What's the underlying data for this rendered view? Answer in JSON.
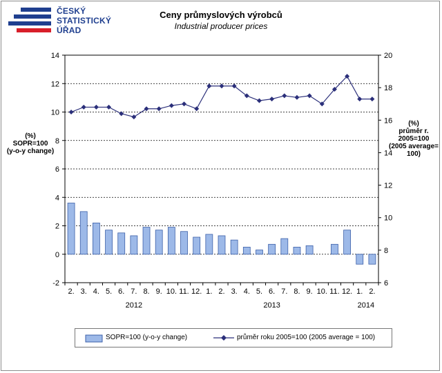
{
  "logo": {
    "lines": [
      "ČESKÝ",
      "STATISTICKÝ",
      "ÚŘAD"
    ]
  },
  "colors": {
    "bar_fill": "#9db9e8",
    "bar_stroke": "#3b5fa8",
    "line_color": "#2b2f7a",
    "logo_blue": "#1f3f8f"
  },
  "chart_data": {
    "type": "bar",
    "title": "Ceny průmyslových výrobců",
    "subtitle": "Industrial producer prices",
    "left_axis_title": [
      "(%)",
      "SOPR=100",
      "(y-o-y change)"
    ],
    "right_axis_title": [
      "(%)",
      "průměr r.",
      "2005=100",
      "(2005 average=",
      "100)"
    ],
    "ylim_left": [
      -2,
      14
    ],
    "yticks_left": [
      -2,
      0,
      2,
      4,
      6,
      8,
      10,
      12,
      14
    ],
    "ylim_right": [
      6,
      20
    ],
    "yticks_right": [
      6,
      8,
      10,
      12,
      14,
      16,
      18,
      20
    ],
    "categories": [
      "2.",
      "3.",
      "4.",
      "5.",
      "6.",
      "7.",
      "8.",
      "9.",
      "10.",
      "11.",
      "12.",
      "1.",
      "2.",
      "3.",
      "4.",
      "5.",
      "6.",
      "7.",
      "8.",
      "9.",
      "10.",
      "11.",
      "12.",
      "1.",
      "2."
    ],
    "year_labels": [
      {
        "label": "2012",
        "category_index": 5
      },
      {
        "label": "2013",
        "category_index": 16
      },
      {
        "label": "2014",
        "category_index": 23.5
      }
    ],
    "series": [
      {
        "name": "SOPR=100 (y-o-y change)",
        "type": "bar",
        "axis": "left",
        "values": [
          3.6,
          3.0,
          2.2,
          1.7,
          1.5,
          1.3,
          1.9,
          1.7,
          1.9,
          1.6,
          1.2,
          1.4,
          1.3,
          1.0,
          0.5,
          0.3,
          0.7,
          1.1,
          0.5,
          0.6,
          0.0,
          0.7,
          1.7,
          -0.7,
          -0.7
        ]
      },
      {
        "name": "průměr roku 2005=100  (2005 average = 100)",
        "type": "line",
        "axis": "right",
        "values": [
          16.5,
          16.8,
          16.8,
          16.8,
          16.4,
          16.2,
          16.7,
          16.7,
          16.9,
          17.0,
          16.7,
          18.1,
          18.1,
          18.1,
          17.5,
          17.2,
          17.3,
          17.5,
          17.4,
          17.5,
          17.0,
          17.9,
          18.7,
          17.3,
          17.3
        ]
      }
    ]
  },
  "legend": {
    "bar_label": "SOPR=100 (y-o-y change)",
    "line_label": "průměr roku 2005=100  (2005 average = 100)"
  }
}
